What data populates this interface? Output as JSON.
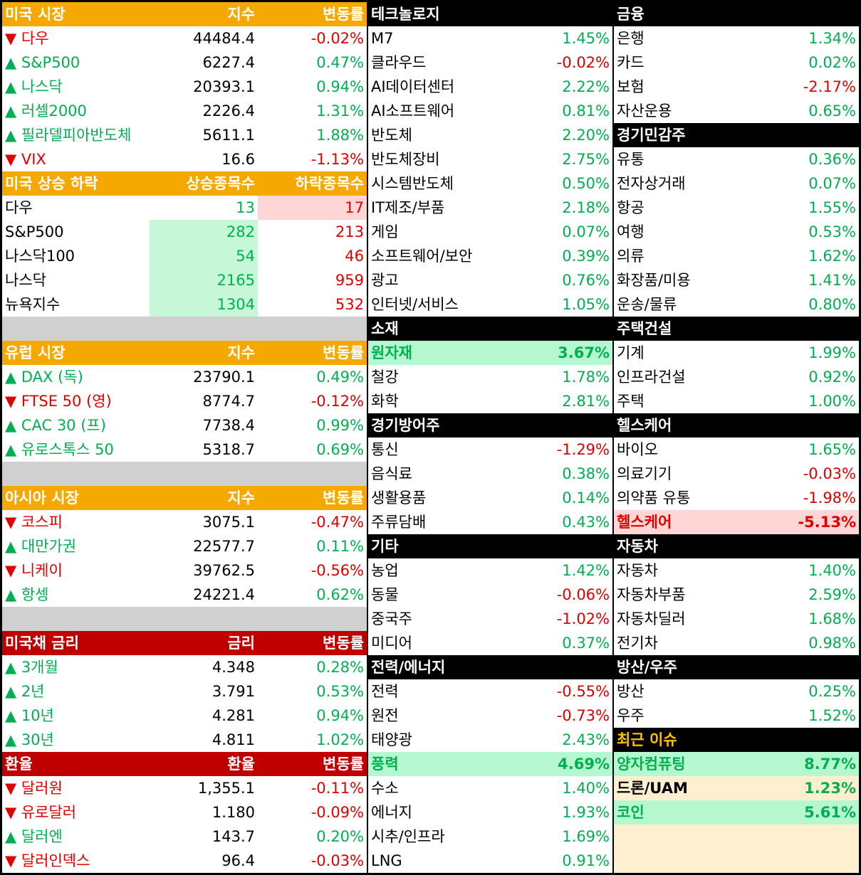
{
  "left": [
    {
      "header": [
        "미국 시장",
        "지수",
        "변동률"
      ],
      "header_color": "#f5a800",
      "rows": [
        [
          "▼ 다우",
          "44484.4",
          "-0.02%"
        ],
        [
          "▲ S&P500",
          "6227.4",
          "0.47%"
        ],
        [
          "▲ 나스닥",
          "20393.1",
          "0.94%"
        ],
        [
          "▲ 러셀2000",
          "2226.4",
          "1.31%"
        ],
        [
          "▲ 필라델피아반도체",
          "5611.1",
          "1.88%"
        ],
        [
          "▼ VIX",
          "16.6",
          "-1.13%"
        ]
      ]
    },
    {
      "header": [
        "미국 상승 하락",
        "상승종목수",
        "하락종목수"
      ],
      "header_color": "#f5a800",
      "rows": [
        [
          "다우",
          "13",
          "17"
        ],
        [
          "S&P500",
          "282",
          "213"
        ],
        [
          "나스닥100",
          "54",
          "46"
        ],
        [
          "나스닥",
          "2165",
          "959"
        ],
        [
          "뉴욕지수",
          "1304",
          "532"
        ]
      ]
    },
    {
      "header": [
        "유럽 시장",
        "지수",
        "변동률"
      ],
      "header_color": "#f5a800",
      "rows": [
        [
          "▲ DAX (독)",
          "23790.1",
          "0.49%"
        ],
        [
          "▼ FTSE 50 (영)",
          "8774.7",
          "-0.12%"
        ],
        [
          "▲ CAC 30 (프)",
          "7738.4",
          "0.99%"
        ],
        [
          "▲ 유로스톡스 50",
          "5318.7",
          "0.69%"
        ]
      ]
    },
    {
      "header": [
        "아시아 시장",
        "지수",
        "변동률"
      ],
      "header_color": "#f5a800",
      "rows": [
        [
          "▼ 코스피",
          "3075.1",
          "-0.47%"
        ],
        [
          "▲ 대만가권",
          "22577.7",
          "0.11%"
        ],
        [
          "▼ 니케이",
          "39762.5",
          "-0.56%"
        ],
        [
          "▲ 항셍",
          "24221.4",
          "0.62%"
        ]
      ]
    },
    {
      "header": [
        "미국채 금리",
        "금리",
        "변동률"
      ],
      "header_color": "#c00000",
      "rows": [
        [
          "▲ 3개월",
          "4.348",
          "0.28%"
        ],
        [
          "▲ 2년",
          "3.791",
          "0.53%"
        ],
        [
          "▲ 10년",
          "4.281",
          "0.94%"
        ],
        [
          "▲ 30년",
          "4.811",
          "1.02%"
        ]
      ]
    },
    {
      "header": [
        "환율",
        "환율",
        "변동률"
      ],
      "header_color": "#c00000",
      "rows": [
        [
          "▼ 달러원",
          "1,355.1",
          "-0.11%"
        ],
        [
          "▼ 유로달러",
          "1.180",
          "-0.09%"
        ],
        [
          "▲ 달러엔",
          "143.7",
          "0.20%"
        ],
        [
          "▼ 달러인덱스",
          "96.4",
          "-0.03%"
        ]
      ]
    }
  ],
  "middle": [
    {
      "header": "테크놀로지",
      "rows": [
        [
          "M7",
          "1.45%"
        ],
        [
          "클라우드",
          "-0.02%"
        ],
        [
          "AI데이터센터",
          "2.22%"
        ],
        [
          "AI소프트웨어",
          "0.81%"
        ],
        [
          "반도체",
          "2.20%"
        ],
        [
          "반도체장비",
          "2.75%"
        ],
        [
          "시스템반도체",
          "0.50%"
        ],
        [
          "IT제조/부품",
          "2.18%"
        ],
        [
          "게임",
          "0.07%"
        ],
        [
          "소프트웨어/보안",
          "0.39%"
        ],
        [
          "광고",
          "0.76%"
        ],
        [
          "인터넷/서비스",
          "1.05%"
        ]
      ]
    },
    {
      "header": "소재",
      "rows": [
        [
          "원자재",
          "3.67%"
        ],
        [
          "철강",
          "1.78%"
        ],
        [
          "화학",
          "2.81%"
        ]
      ],
      "highlight": {
        "0": "#b5f7cf"
      }
    },
    {
      "header": "경기방어주",
      "rows": [
        [
          "통신",
          "-1.29%"
        ],
        [
          "음식료",
          "0.38%"
        ],
        [
          "생활용품",
          "0.14%"
        ],
        [
          "주류담배",
          "0.43%"
        ]
      ]
    },
    {
      "header": "기타",
      "rows": [
        [
          "농업",
          "1.42%"
        ],
        [
          "동물",
          "-0.06%"
        ],
        [
          "중국주",
          "-1.02%"
        ],
        [
          "미디어",
          "0.37%"
        ]
      ]
    },
    {
      "header": "전력/에너지",
      "rows": [
        [
          "전력",
          "-0.55%"
        ],
        [
          "원전",
          "-0.73%"
        ],
        [
          "태양광",
          "2.43%"
        ],
        [
          "풍력",
          "4.69%"
        ],
        [
          "수소",
          "1.40%"
        ],
        [
          "에너지",
          "1.93%"
        ],
        [
          "시추/인프라",
          "1.69%"
        ],
        [
          "LNG",
          "0.91%"
        ]
      ],
      "highlight": {
        "3": "#b5f7cf"
      }
    }
  ],
  "right": [
    {
      "header": "금융",
      "rows": [
        [
          "은행",
          "1.34%"
        ],
        [
          "카드",
          "0.02%"
        ],
        [
          "보험",
          "-2.17%"
        ],
        [
          "자산운용",
          "0.65%"
        ]
      ]
    },
    {
      "header": "경기민감주",
      "rows": [
        [
          "유통",
          "0.36%"
        ],
        [
          "전자상거래",
          "0.07%"
        ],
        [
          "항공",
          "1.55%"
        ],
        [
          "여행",
          "0.53%"
        ],
        [
          "의류",
          "1.62%"
        ],
        [
          "화장품/미용",
          "1.41%"
        ],
        [
          "운송/물류",
          "0.80%"
        ]
      ]
    },
    {
      "header": "주택건설",
      "rows": [
        [
          "기계",
          "1.99%"
        ],
        [
          "인프라건설",
          "0.92%"
        ],
        [
          "주택",
          "1.00%"
        ]
      ]
    },
    {
      "header": "헬스케어",
      "rows": [
        [
          "바이오",
          "1.65%"
        ],
        [
          "의료기기",
          "-0.03%"
        ],
        [
          "의약품 유통",
          "-1.98%"
        ],
        [
          "헬스케어",
          "-5.13%"
        ]
      ],
      "highlight": {
        "3": "#ffd6d6"
      }
    },
    {
      "header": "자동차",
      "rows": [
        [
          "자동차",
          "1.40%"
        ],
        [
          "자동차부품",
          "2.59%"
        ],
        [
          "자동차딜러",
          "1.68%"
        ],
        [
          "전기차",
          "0.98%"
        ]
      ]
    },
    {
      "header": "방산/우주",
      "rows": [
        [
          "방산",
          "0.25%"
        ],
        [
          "우주",
          "1.52%"
        ]
      ]
    },
    {
      "header": "최근 이슈",
      "header_text_color": "#ffc000",
      "rows": [
        [
          "양자컴퓨팅",
          "8.77%"
        ],
        [
          "드론/UAM",
          "1.23%"
        ],
        [
          "코인",
          "5.61%"
        ]
      ],
      "highlight": {
        "0": "#b5f7cf",
        "1": "#fdefcf",
        "2": "#b5f7cf"
      }
    }
  ]
}
